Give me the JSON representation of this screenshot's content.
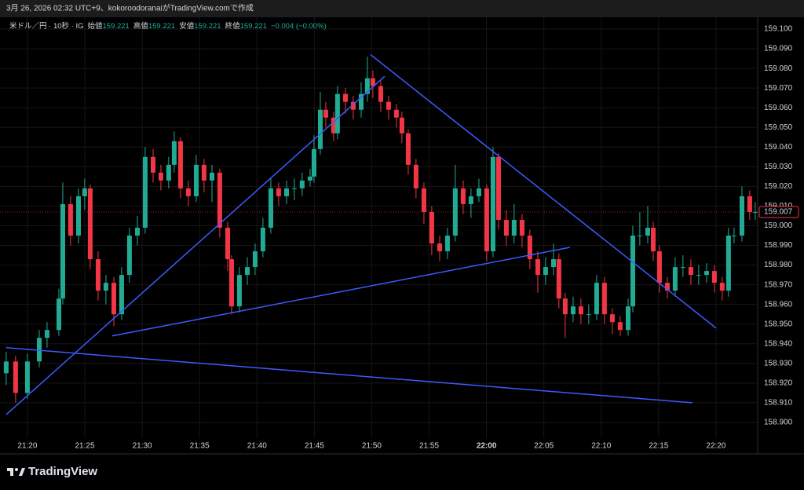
{
  "header": {
    "caption": "3月 26, 2026 02:32 UTC+9、kokoroodoranaiがTradingView.comで作成"
  },
  "footer": {
    "brand": "TradingView"
  },
  "chart_data": {
    "type": "candlestick",
    "symbol": "米ドル／円 · 10秒 · IG",
    "ohlc_legend": [
      {
        "label": "始値",
        "value": 159.221
      },
      {
        "label": "高値",
        "value": 159.221
      },
      {
        "label": "安値",
        "value": 159.221
      },
      {
        "label": "終値",
        "value": 159.221
      }
    ],
    "change": "−0.004 (−0.00%)",
    "up_color": "#22ab94",
    "down_color": "#f23645",
    "line_color": "#3d5afe",
    "grid": true,
    "xlim": [
      1277.61,
      1343.63
    ],
    "ylim": [
      158.8912,
      159.106
    ],
    "xticks": [
      {
        "value": 1280,
        "label": "21:20"
      },
      {
        "value": 1285,
        "label": "21:25"
      },
      {
        "value": 1290,
        "label": "21:30"
      },
      {
        "value": 1295,
        "label": "21:35"
      },
      {
        "value": 1300,
        "label": "21:40"
      },
      {
        "value": 1305,
        "label": "21:45"
      },
      {
        "value": 1310,
        "label": "21:50"
      },
      {
        "value": 1315,
        "label": "21:55"
      },
      {
        "value": 1320,
        "label": "22:00"
      },
      {
        "value": 1325,
        "label": "22:05"
      },
      {
        "value": 1330,
        "label": "22:10"
      },
      {
        "value": 1335,
        "label": "22:15"
      },
      {
        "value": 1340,
        "label": "22:20"
      }
    ],
    "yticks": [
      {
        "value": 159.1,
        "label": "159.100"
      },
      {
        "value": 159.09,
        "label": "159.090"
      },
      {
        "value": 159.08,
        "label": "159.080"
      },
      {
        "value": 159.07,
        "label": "159.070"
      },
      {
        "value": 159.06,
        "label": "159.060"
      },
      {
        "value": 159.05,
        "label": "159.050"
      },
      {
        "value": 159.04,
        "label": "159.040"
      },
      {
        "value": 159.03,
        "label": "159.030"
      },
      {
        "value": 159.02,
        "label": "159.020"
      },
      {
        "value": 159.01,
        "label": "159.010"
      },
      {
        "value": 159.0,
        "label": "159.000"
      },
      {
        "value": 158.99,
        "label": "158.990"
      },
      {
        "value": 158.98,
        "label": "158.980"
      },
      {
        "value": 158.97,
        "label": "158.970"
      },
      {
        "value": 158.96,
        "label": "158.960"
      },
      {
        "value": 158.95,
        "label": "158.950"
      },
      {
        "value": 158.94,
        "label": "158.940"
      },
      {
        "value": 158.93,
        "label": "158.930"
      },
      {
        "value": 158.92,
        "label": "158.920"
      },
      {
        "value": 158.91,
        "label": "158.910"
      },
      {
        "value": 158.9,
        "label": "158.900"
      }
    ],
    "trend_lines": [
      {
        "x": [
          1278.15,
          1311.13
        ],
        "y": [
          158.904,
          159.076
        ]
      },
      {
        "x": [
          1287.39,
          1327.27
        ],
        "y": [
          158.944,
          158.989
        ]
      },
      {
        "x": [
          1309.9,
          1340.0
        ],
        "y": [
          159.087,
          158.948
        ]
      },
      {
        "x": [
          1278.15,
          1337.95
        ],
        "y": [
          158.938,
          158.91
        ]
      }
    ],
    "candles": [
      {
        "x": 1278.15,
        "open": 158.925,
        "close": 158.931,
        "high": 158.936,
        "low": 158.919
      },
      {
        "x": 1278.97,
        "open": 158.931,
        "close": 158.915,
        "high": 158.934,
        "low": 158.91
      },
      {
        "x": 1280.0,
        "open": 158.915,
        "close": 158.931,
        "high": 158.935,
        "low": 158.912
      },
      {
        "x": 1281.03,
        "open": 158.931,
        "close": 158.943,
        "high": 158.947,
        "low": 158.928
      },
      {
        "x": 1281.71,
        "open": 158.943,
        "close": 158.947,
        "high": 158.951,
        "low": 158.938
      },
      {
        "x": 1282.74,
        "open": 158.947,
        "close": 158.963,
        "high": 158.968,
        "low": 158.944
      },
      {
        "x": 1283.08,
        "open": 158.963,
        "close": 159.011,
        "high": 159.022,
        "low": 158.96
      },
      {
        "x": 1283.76,
        "open": 159.011,
        "close": 158.995,
        "high": 159.015,
        "low": 158.99
      },
      {
        "x": 1284.45,
        "open": 158.995,
        "close": 159.015,
        "high": 159.019,
        "low": 158.991
      },
      {
        "x": 1284.99,
        "open": 159.015,
        "close": 159.019,
        "high": 159.024,
        "low": 159.008
      },
      {
        "x": 1285.47,
        "open": 159.019,
        "close": 158.983,
        "high": 159.021,
        "low": 158.978
      },
      {
        "x": 1286.16,
        "open": 158.983,
        "close": 158.967,
        "high": 158.987,
        "low": 158.962
      },
      {
        "x": 1286.84,
        "open": 158.967,
        "close": 158.971,
        "high": 158.975,
        "low": 158.96
      },
      {
        "x": 1287.53,
        "open": 158.971,
        "close": 158.955,
        "high": 158.974,
        "low": 158.949
      },
      {
        "x": 1288.21,
        "open": 158.955,
        "close": 158.975,
        "high": 158.979,
        "low": 158.952
      },
      {
        "x": 1288.89,
        "open": 158.975,
        "close": 158.995,
        "high": 158.999,
        "low": 158.971
      },
      {
        "x": 1289.58,
        "open": 158.995,
        "close": 158.999,
        "high": 159.005,
        "low": 158.99
      },
      {
        "x": 1290.26,
        "open": 158.999,
        "close": 159.035,
        "high": 159.04,
        "low": 158.996
      },
      {
        "x": 1290.95,
        "open": 159.035,
        "close": 159.027,
        "high": 159.039,
        "low": 159.022
      },
      {
        "x": 1291.63,
        "open": 159.027,
        "close": 159.023,
        "high": 159.031,
        "low": 159.018
      },
      {
        "x": 1292.31,
        "open": 159.023,
        "close": 159.031,
        "high": 159.035,
        "low": 159.019
      },
      {
        "x": 1292.79,
        "open": 159.031,
        "close": 159.043,
        "high": 159.048,
        "low": 159.027
      },
      {
        "x": 1293.34,
        "open": 159.043,
        "close": 159.019,
        "high": 159.045,
        "low": 159.014
      },
      {
        "x": 1294.02,
        "open": 159.019,
        "close": 159.015,
        "high": 159.023,
        "low": 159.01
      },
      {
        "x": 1294.71,
        "open": 159.015,
        "close": 159.031,
        "high": 159.036,
        "low": 159.012
      },
      {
        "x": 1295.39,
        "open": 159.031,
        "close": 159.023,
        "high": 159.034,
        "low": 159.017
      },
      {
        "x": 1296.08,
        "open": 159.023,
        "close": 159.027,
        "high": 159.031,
        "low": 159.012
      },
      {
        "x": 1296.76,
        "open": 159.027,
        "close": 158.999,
        "high": 159.029,
        "low": 158.994
      },
      {
        "x": 1297.45,
        "open": 158.999,
        "close": 158.983,
        "high": 159.002,
        "low": 158.977
      },
      {
        "x": 1297.79,
        "open": 158.983,
        "close": 158.959,
        "high": 158.985,
        "low": 158.955
      },
      {
        "x": 1298.47,
        "open": 158.959,
        "close": 158.975,
        "high": 158.979,
        "low": 158.956
      },
      {
        "x": 1299.16,
        "open": 158.975,
        "close": 158.979,
        "high": 158.984,
        "low": 158.97
      },
      {
        "x": 1299.84,
        "open": 158.979,
        "close": 158.987,
        "high": 158.991,
        "low": 158.975
      },
      {
        "x": 1300.52,
        "open": 158.987,
        "close": 158.999,
        "high": 159.004,
        "low": 158.984
      },
      {
        "x": 1301.21,
        "open": 158.999,
        "close": 159.019,
        "high": 159.024,
        "low": 158.996
      },
      {
        "x": 1301.89,
        "open": 159.019,
        "close": 159.015,
        "high": 159.022,
        "low": 159.01
      },
      {
        "x": 1302.58,
        "open": 159.015,
        "close": 159.019,
        "high": 159.023,
        "low": 159.011
      },
      {
        "x": 1303.26,
        "open": 159.019,
        "close": 159.019,
        "high": 159.024,
        "low": 159.013
      },
      {
        "x": 1303.94,
        "open": 159.019,
        "close": 159.023,
        "high": 159.027,
        "low": 159.015
      },
      {
        "x": 1304.63,
        "open": 159.023,
        "close": 159.025,
        "high": 159.029,
        "low": 159.02
      },
      {
        "x": 1304.97,
        "open": 159.025,
        "close": 159.039,
        "high": 159.046,
        "low": 159.022
      },
      {
        "x": 1305.52,
        "open": 159.039,
        "close": 159.059,
        "high": 159.068,
        "low": 159.036
      },
      {
        "x": 1306.0,
        "open": 159.059,
        "close": 159.055,
        "high": 159.063,
        "low": 159.05
      },
      {
        "x": 1306.68,
        "open": 159.055,
        "close": 159.047,
        "high": 159.058,
        "low": 159.043
      },
      {
        "x": 1307.02,
        "open": 159.047,
        "close": 159.067,
        "high": 159.071,
        "low": 159.044
      },
      {
        "x": 1307.71,
        "open": 159.067,
        "close": 159.063,
        "high": 159.07,
        "low": 159.057
      },
      {
        "x": 1308.39,
        "open": 159.063,
        "close": 159.059,
        "high": 159.066,
        "low": 159.054
      },
      {
        "x": 1309.08,
        "open": 159.059,
        "close": 159.067,
        "high": 159.073,
        "low": 159.055
      },
      {
        "x": 1309.62,
        "open": 159.067,
        "close": 159.075,
        "high": 159.086,
        "low": 159.063
      },
      {
        "x": 1310.1,
        "open": 159.075,
        "close": 159.071,
        "high": 159.079,
        "low": 159.065
      },
      {
        "x": 1310.79,
        "open": 159.071,
        "close": 159.063,
        "high": 159.074,
        "low": 159.058
      },
      {
        "x": 1311.47,
        "open": 159.063,
        "close": 159.059,
        "high": 159.066,
        "low": 159.054
      },
      {
        "x": 1312.15,
        "open": 159.059,
        "close": 159.055,
        "high": 159.062,
        "low": 159.05
      },
      {
        "x": 1312.63,
        "open": 159.055,
        "close": 159.047,
        "high": 159.058,
        "low": 159.042
      },
      {
        "x": 1313.18,
        "open": 159.047,
        "close": 159.031,
        "high": 159.049,
        "low": 159.026
      },
      {
        "x": 1313.86,
        "open": 159.031,
        "close": 159.019,
        "high": 159.034,
        "low": 159.014
      },
      {
        "x": 1314.55,
        "open": 159.019,
        "close": 159.007,
        "high": 159.022,
        "low": 159.001
      },
      {
        "x": 1315.23,
        "open": 159.007,
        "close": 158.991,
        "high": 159.01,
        "low": 158.985
      },
      {
        "x": 1315.92,
        "open": 158.991,
        "close": 158.987,
        "high": 158.995,
        "low": 158.982
      },
      {
        "x": 1316.6,
        "open": 158.987,
        "close": 158.995,
        "high": 158.999,
        "low": 158.983
      },
      {
        "x": 1317.28,
        "open": 158.995,
        "close": 159.019,
        "high": 159.031,
        "low": 158.992
      },
      {
        "x": 1317.97,
        "open": 159.019,
        "close": 159.011,
        "high": 159.023,
        "low": 159.006
      },
      {
        "x": 1318.65,
        "open": 159.011,
        "close": 159.015,
        "high": 159.019,
        "low": 159.004
      },
      {
        "x": 1319.34,
        "open": 159.015,
        "close": 159.019,
        "high": 159.024,
        "low": 159.012
      },
      {
        "x": 1320.02,
        "open": 159.019,
        "close": 158.987,
        "high": 159.021,
        "low": 158.982
      },
      {
        "x": 1320.57,
        "open": 158.987,
        "close": 159.035,
        "high": 159.04,
        "low": 158.984
      },
      {
        "x": 1321.05,
        "open": 159.035,
        "close": 159.003,
        "high": 159.037,
        "low": 158.998
      },
      {
        "x": 1321.73,
        "open": 159.003,
        "close": 158.995,
        "high": 159.008,
        "low": 158.99
      },
      {
        "x": 1322.41,
        "open": 158.995,
        "close": 159.003,
        "high": 159.011,
        "low": 158.991
      },
      {
        "x": 1323.1,
        "open": 159.003,
        "close": 158.995,
        "high": 159.006,
        "low": 158.989
      },
      {
        "x": 1323.78,
        "open": 158.995,
        "close": 158.983,
        "high": 158.998,
        "low": 158.978
      },
      {
        "x": 1324.47,
        "open": 158.983,
        "close": 158.975,
        "high": 158.987,
        "low": 158.966
      },
      {
        "x": 1325.15,
        "open": 158.975,
        "close": 158.979,
        "high": 158.984,
        "low": 158.97
      },
      {
        "x": 1325.84,
        "open": 158.979,
        "close": 158.983,
        "high": 158.991,
        "low": 158.975
      },
      {
        "x": 1326.31,
        "open": 158.983,
        "close": 158.963,
        "high": 158.986,
        "low": 158.958
      },
      {
        "x": 1326.86,
        "open": 158.963,
        "close": 158.955,
        "high": 158.966,
        "low": 158.943
      },
      {
        "x": 1327.55,
        "open": 158.955,
        "close": 158.959,
        "high": 158.964,
        "low": 158.951
      },
      {
        "x": 1328.23,
        "open": 158.959,
        "close": 158.955,
        "high": 158.963,
        "low": 158.95
      },
      {
        "x": 1328.91,
        "open": 158.955,
        "close": 158.955,
        "high": 158.96,
        "low": 158.95
      },
      {
        "x": 1329.6,
        "open": 158.955,
        "close": 158.971,
        "high": 158.975,
        "low": 158.952
      },
      {
        "x": 1330.28,
        "open": 158.971,
        "close": 158.955,
        "high": 158.974,
        "low": 158.95
      },
      {
        "x": 1330.97,
        "open": 158.955,
        "close": 158.951,
        "high": 158.958,
        "low": 158.945
      },
      {
        "x": 1331.65,
        "open": 158.951,
        "close": 158.947,
        "high": 158.954,
        "low": 158.944
      },
      {
        "x": 1332.34,
        "open": 158.947,
        "close": 158.959,
        "high": 158.963,
        "low": 158.944
      },
      {
        "x": 1332.75,
        "open": 158.959,
        "close": 158.995,
        "high": 159.0,
        "low": 158.956
      },
      {
        "x": 1333.36,
        "open": 158.995,
        "close": 158.995,
        "high": 159.007,
        "low": 158.99
      },
      {
        "x": 1334.05,
        "open": 158.995,
        "close": 158.999,
        "high": 159.01,
        "low": 158.991
      },
      {
        "x": 1334.53,
        "open": 158.999,
        "close": 158.987,
        "high": 159.002,
        "low": 158.982
      },
      {
        "x": 1335.07,
        "open": 158.987,
        "close": 158.971,
        "high": 158.99,
        "low": 158.966
      },
      {
        "x": 1335.76,
        "open": 158.971,
        "close": 158.967,
        "high": 158.974,
        "low": 158.963
      },
      {
        "x": 1336.44,
        "open": 158.967,
        "close": 158.979,
        "high": 158.984,
        "low": 158.964
      },
      {
        "x": 1337.12,
        "open": 158.979,
        "close": 158.979,
        "high": 158.985,
        "low": 158.974
      },
      {
        "x": 1337.81,
        "open": 158.979,
        "close": 158.975,
        "high": 158.983,
        "low": 158.97
      },
      {
        "x": 1338.49,
        "open": 158.975,
        "close": 158.975,
        "high": 158.98,
        "low": 158.97
      },
      {
        "x": 1339.18,
        "open": 158.975,
        "close": 158.977,
        "high": 158.981,
        "low": 158.971
      },
      {
        "x": 1339.86,
        "open": 158.977,
        "close": 158.971,
        "high": 158.98,
        "low": 158.966
      },
      {
        "x": 1340.54,
        "open": 158.971,
        "close": 158.967,
        "high": 158.974,
        "low": 158.962
      },
      {
        "x": 1341.09,
        "open": 158.967,
        "close": 158.995,
        "high": 158.999,
        "low": 158.964
      },
      {
        "x": 1341.57,
        "open": 158.995,
        "close": 158.995,
        "high": 158.999,
        "low": 158.991
      },
      {
        "x": 1342.26,
        "open": 158.995,
        "close": 159.015,
        "high": 159.02,
        "low": 158.992
      },
      {
        "x": 1342.94,
        "open": 159.015,
        "close": 159.007,
        "high": 159.018,
        "low": 159.003
      },
      {
        "x": 1343.42,
        "open": 159.007,
        "close": 159.007,
        "high": 159.012,
        "low": 159.003
      }
    ]
  }
}
